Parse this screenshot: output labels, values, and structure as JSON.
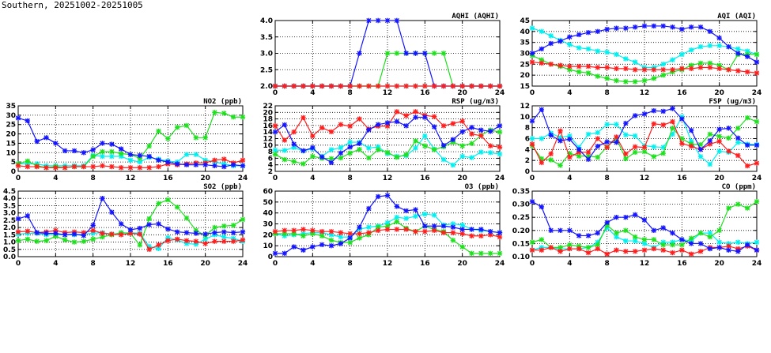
{
  "title": "Southern, 20251002-20251005",
  "series_colors": {
    "blue": "#1414ff",
    "cyan": "#00f0f0",
    "green": "#1ee01e",
    "red": "#ff1e1e"
  },
  "chart_data": [
    {
      "type": "line",
      "title": "AQHI (AQHI)",
      "xticks": [
        "0",
        "4",
        "8",
        "12",
        "16",
        "20",
        "24"
      ],
      "xlim": [
        0,
        24
      ],
      "ylim": [
        2,
        4
      ],
      "yticks": [
        "2.0",
        "2.5",
        "3.0",
        "3.5",
        "4.0"
      ],
      "grid": true,
      "series": [
        {
          "name": "cyan",
          "values": [
            2,
            2,
            2,
            2,
            2,
            2,
            2,
            2,
            2,
            2,
            2,
            2,
            2,
            2,
            2,
            2,
            2,
            2,
            2,
            2,
            2,
            2,
            2,
            2,
            2
          ]
        },
        {
          "name": "green",
          "values": [
            2,
            2,
            2,
            2,
            2,
            2,
            2,
            2,
            2,
            2,
            2,
            2,
            3,
            3,
            3,
            3,
            3,
            3,
            3,
            2,
            2,
            2,
            2,
            2,
            2
          ]
        },
        {
          "name": "blue",
          "values": [
            2,
            2,
            2,
            2,
            2,
            2,
            2,
            2,
            2,
            3,
            4,
            4,
            4,
            4,
            3,
            3,
            3,
            2,
            2,
            2,
            2,
            2,
            2,
            2,
            2
          ]
        },
        {
          "name": "red",
          "values": [
            2,
            2,
            2,
            2,
            2,
            2,
            2,
            2,
            2,
            2,
            2,
            2,
            2,
            2,
            2,
            2,
            2,
            2,
            2,
            2,
            2,
            2,
            2,
            2,
            2
          ]
        }
      ]
    },
    {
      "type": "line",
      "title": "AQI (AQI)",
      "xticks": [
        "0",
        "4",
        "8",
        "12",
        "16",
        "20",
        "24"
      ],
      "xlim": [
        0,
        24
      ],
      "ylim": [
        15,
        45
      ],
      "yticks": [
        "15",
        "20",
        "25",
        "30",
        "35",
        "40",
        "45"
      ],
      "grid": true,
      "series": [
        {
          "name": "cyan",
          "values": [
            41.5,
            40,
            38,
            36,
            34,
            32.5,
            32,
            31,
            30.5,
            29.5,
            27.5,
            26,
            23.5,
            23.5,
            25,
            27,
            29.5,
            31.5,
            33,
            33.5,
            33.5,
            33,
            32,
            31,
            29.5
          ]
        },
        {
          "name": "green",
          "values": [
            29,
            27,
            25,
            24,
            22.5,
            21.5,
            21,
            19.5,
            18.5,
            17.5,
            17,
            17,
            17.5,
            18.5,
            20,
            21.5,
            22.5,
            24.5,
            25.5,
            25.5,
            24.5,
            22.5,
            29.5,
            29.5,
            29.5
          ]
        },
        {
          "name": "red",
          "values": [
            26,
            25.5,
            25,
            24.5,
            24,
            24,
            24,
            23.5,
            23.5,
            23,
            23,
            22.5,
            22.5,
            22.5,
            22.5,
            22.5,
            23,
            23,
            23.5,
            23.5,
            23,
            22.5,
            22,
            21.5,
            21
          ]
        },
        {
          "name": "blue",
          "values": [
            30,
            32,
            34.5,
            35.5,
            37.5,
            38.5,
            39.5,
            40,
            41,
            41.5,
            41.5,
            42,
            42.5,
            42.5,
            42.5,
            42,
            41,
            42,
            42,
            40,
            37,
            33,
            30,
            28.5,
            26
          ]
        }
      ]
    },
    {
      "type": "line",
      "title": "NO2 (ppb)",
      "xticks": [
        "0",
        "4",
        "8",
        "12",
        "16",
        "20",
        "24"
      ],
      "xlim": [
        0,
        24
      ],
      "ylim": [
        0,
        35
      ],
      "yticks": [
        "0",
        "5",
        "10",
        "15",
        "20",
        "25",
        "30",
        "35"
      ],
      "grid": true,
      "series": [
        {
          "name": "cyan",
          "values": [
            4,
            4,
            4,
            3,
            3,
            3,
            3,
            3,
            8.5,
            8,
            8,
            8,
            6,
            5,
            7.5,
            6.5,
            5.5,
            5,
            9,
            9,
            6,
            5,
            4,
            3,
            3
          ]
        },
        {
          "name": "green",
          "values": [
            4,
            5.5,
            3,
            2,
            2.5,
            2,
            2.5,
            2.5,
            8,
            10.5,
            10.5,
            9.5,
            9,
            7,
            13.5,
            21.5,
            17.5,
            23.5,
            24.5,
            18,
            18,
            31.5,
            31,
            29,
            29
          ]
        },
        {
          "name": "red",
          "values": [
            3,
            2.5,
            2.5,
            2,
            2,
            2,
            2.5,
            2.5,
            2.5,
            3,
            2.5,
            2,
            2,
            2,
            2,
            2.5,
            4,
            3.5,
            4,
            4.5,
            4.5,
            6,
            6.5,
            4.5,
            6
          ]
        },
        {
          "name": "blue",
          "values": [
            28.5,
            27,
            16,
            18,
            15,
            11,
            11,
            10,
            11.5,
            15,
            14.5,
            12,
            9,
            8.5,
            8,
            6,
            5,
            4,
            3.5,
            3.5,
            3.5,
            3,
            2.5,
            3.5,
            3
          ]
        }
      ]
    },
    {
      "type": "line",
      "title": "RSP (ug/m3)",
      "xticks": [
        "0",
        "4",
        "8",
        "12",
        "16",
        "20",
        "24"
      ],
      "xlim": [
        0,
        24
      ],
      "ylim": [
        2,
        22
      ],
      "yticks": [
        "2",
        "4",
        "6",
        "8",
        "10",
        "12",
        "14",
        "16",
        "18",
        "20",
        "22"
      ],
      "grid": true,
      "series": [
        {
          "name": "cyan",
          "values": [
            8.5,
            8.4,
            9.3,
            8.2,
            8.9,
            6.6,
            8.6,
            9.2,
            10.9,
            10.9,
            9.1,
            9.5,
            7.4,
            6.6,
            6.8,
            9.1,
            12.8,
            8.8,
            5.6,
            3.9,
            6.6,
            6.2,
            7.9,
            7.7,
            7.3
          ]
        },
        {
          "name": "green",
          "values": [
            7.2,
            5.6,
            5.0,
            4.3,
            6.6,
            6.0,
            5.9,
            6.1,
            7.6,
            8.7,
            6.1,
            8.6,
            7.8,
            6.3,
            7.1,
            11.3,
            9.8,
            8.6,
            9.5,
            10.9,
            9.8,
            10.5,
            13,
            14.6,
            14
          ]
        },
        {
          "name": "red",
          "values": [
            15.9,
            11.5,
            14.0,
            18.4,
            12.8,
            15.3,
            14.1,
            16.3,
            15.8,
            18.0,
            14.9,
            15.8,
            15.8,
            20.2,
            19.0,
            20.2,
            19.1,
            18.7,
            15.9,
            16.6,
            17.3,
            13.4,
            12.9,
            9.8,
            9.4
          ]
        },
        {
          "name": "blue",
          "values": [
            14,
            16.2,
            10.3,
            8.3,
            9.2,
            6.4,
            4.7,
            7.6,
            9.4,
            10.5,
            14.7,
            16.3,
            16.8,
            17.2,
            15.9,
            18.5,
            18.5,
            15.6,
            9.9,
            11.7,
            14.1,
            15.4,
            14.6,
            14.2,
            15.9
          ]
        }
      ]
    },
    {
      "type": "line",
      "title": "FSP (ug/m3)",
      "xticks": [
        "0",
        "4",
        "8",
        "12",
        "16",
        "20",
        "24"
      ],
      "xlim": [
        0,
        24
      ],
      "ylim": [
        0,
        12
      ],
      "yticks": [
        "0",
        "2",
        "4",
        "6",
        "8",
        "10",
        "12"
      ],
      "grid": true,
      "series": [
        {
          "name": "cyan",
          "values": [
            6,
            6,
            7,
            6.2,
            6.5,
            4.4,
            6.8,
            7.1,
            8.6,
            8.6,
            6.7,
            6.5,
            4.7,
            4.5,
            4.4,
            6.8,
            10,
            5.5,
            2.7,
            1.3,
            3.7,
            3.5,
            5.3,
            5,
            4.9
          ]
        },
        {
          "name": "green",
          "values": [
            4.7,
            2.3,
            2.1,
            1.1,
            3.3,
            2.8,
            2.8,
            2.6,
            4.5,
            6,
            2.3,
            3.5,
            3.6,
            2.7,
            3.3,
            7.9,
            6,
            5,
            4.9,
            6.8,
            6.4,
            6.1,
            7.9,
            9.8,
            9.1
          ]
        },
        {
          "name": "red",
          "values": [
            5,
            1.6,
            3.2,
            7.4,
            2.6,
            3.5,
            3.5,
            6,
            4.4,
            6.3,
            3.2,
            4.5,
            4.4,
            8.7,
            8.5,
            9.1,
            5.1,
            4.6,
            4,
            5,
            5.5,
            3.7,
            2.9,
            1,
            1.5
          ]
        },
        {
          "name": "blue",
          "values": [
            9.2,
            11.3,
            6.6,
            5.6,
            5.9,
            4,
            2.2,
            4.6,
            5.4,
            5.3,
            8.8,
            10.2,
            10.5,
            11.1,
            11,
            11.5,
            9.6,
            7.5,
            4,
            5.6,
            7.7,
            7.9,
            6.1,
            4.8,
            4.8
          ]
        }
      ]
    },
    {
      "type": "line",
      "title": "SO2 (ppb)",
      "xticks": [
        "0",
        "4",
        "8",
        "12",
        "16",
        "20",
        "24"
      ],
      "xlim": [
        0,
        24
      ],
      "ylim": [
        0,
        4.5
      ],
      "yticks": [
        "0.0",
        "0.5",
        "1.0",
        "1.5",
        "2.0",
        "2.5",
        "3.0",
        "3.5",
        "4.0",
        "4.5"
      ],
      "grid": true,
      "series": [
        {
          "name": "cyan",
          "values": [
            1.55,
            1.6,
            1.6,
            1.5,
            1.5,
            1.5,
            1.5,
            1.55,
            1.6,
            1.65,
            1.55,
            1.6,
            1.65,
            1.6,
            0.7,
            0.55,
            1.3,
            1.15,
            0.9,
            0.85,
            1.2,
            1.5,
            1.35,
            1.25,
            1.05
          ]
        },
        {
          "name": "green",
          "values": [
            1.1,
            1.2,
            1.05,
            1.1,
            1.4,
            1.15,
            1.0,
            1.05,
            1.2,
            1.35,
            1.5,
            1.65,
            1.6,
            0.8,
            2.6,
            3.65,
            3.9,
            3.4,
            2.65,
            1.8,
            1.45,
            2.0,
            2.1,
            2.15,
            2.55
          ]
        },
        {
          "name": "red",
          "values": [
            1.7,
            1.75,
            1.65,
            1.7,
            1.8,
            1.65,
            1.7,
            1.65,
            1.8,
            1.6,
            1.55,
            1.5,
            1.6,
            1.55,
            0.5,
            0.8,
            1.1,
            1.2,
            1.1,
            1.05,
            0.9,
            1.05,
            1.05,
            1.05,
            1.15
          ]
        },
        {
          "name": "blue",
          "values": [
            2.6,
            2.8,
            1.65,
            1.6,
            1.6,
            1.5,
            1.55,
            1.45,
            2.15,
            4.0,
            3.05,
            2.25,
            1.85,
            1.95,
            2.2,
            2.25,
            1.9,
            1.7,
            1.65,
            1.6,
            1.55,
            1.65,
            1.7,
            1.65,
            1.7
          ]
        }
      ]
    },
    {
      "type": "line",
      "title": "O3 (ppb)",
      "xticks": [
        "0",
        "4",
        "8",
        "12",
        "16",
        "20",
        "24"
      ],
      "xlim": [
        0,
        24
      ],
      "ylim": [
        0,
        60
      ],
      "yticks": [
        "0",
        "10",
        "20",
        "30",
        "40",
        "50",
        "60"
      ],
      "grid": true,
      "series": [
        {
          "name": "cyan",
          "values": [
            21,
            19,
            20,
            21,
            22,
            22,
            20,
            18,
            18,
            25,
            27,
            28,
            31,
            36,
            35,
            37,
            39,
            38,
            29,
            30,
            29,
            25,
            24,
            23,
            22
          ]
        },
        {
          "name": "green",
          "values": [
            21,
            21,
            21,
            19,
            21,
            19,
            15,
            13,
            13,
            17,
            20,
            27,
            28,
            32,
            26,
            23,
            28,
            25,
            23,
            15,
            9,
            3,
            3,
            3,
            3
          ]
        },
        {
          "name": "red",
          "values": [
            23,
            24,
            24,
            25,
            24,
            23,
            23,
            22,
            21,
            21,
            22,
            24,
            25,
            25,
            25,
            23,
            23,
            24,
            22,
            22,
            21,
            19,
            19,
            20,
            18
          ]
        },
        {
          "name": "blue",
          "values": [
            3,
            3,
            9,
            6,
            9,
            11,
            10,
            12,
            17,
            27,
            44,
            55,
            56,
            46,
            42,
            43,
            28,
            28,
            28,
            27,
            25,
            25,
            25,
            23,
            22
          ]
        }
      ]
    },
    {
      "type": "line",
      "title": "CO (ppm)",
      "xticks": [
        "0",
        "4",
        "8",
        "12",
        "16",
        "20",
        "24"
      ],
      "xlim": [
        0,
        24
      ],
      "ylim": [
        0.1,
        0.35
      ],
      "yticks": [
        "0.10",
        "0.15",
        "0.20",
        "0.25",
        "0.30",
        "0.35"
      ],
      "grid": true,
      "series": [
        {
          "name": "cyan",
          "values": [
            0.125,
            0.135,
            0.135,
            0.13,
            0.13,
            0.13,
            0.135,
            0.155,
            0.21,
            0.175,
            0.16,
            0.16,
            0.15,
            0.135,
            0.155,
            0.155,
            0.165,
            0.16,
            0.19,
            0.19,
            0.155,
            0.15,
            0.155,
            0.15,
            0.155
          ]
        },
        {
          "name": "green",
          "values": [
            0.155,
            0.165,
            0.135,
            0.135,
            0.145,
            0.14,
            0.135,
            0.145,
            0.22,
            0.19,
            0.2,
            0.175,
            0.165,
            0.165,
            0.145,
            0.145,
            0.145,
            0.17,
            0.19,
            0.175,
            0.2,
            0.285,
            0.3,
            0.285,
            0.31
          ]
        },
        {
          "name": "red",
          "values": [
            0.125,
            0.125,
            0.135,
            0.12,
            0.13,
            0.13,
            0.115,
            0.13,
            0.11,
            0.125,
            0.12,
            0.12,
            0.125,
            0.13,
            0.125,
            0.115,
            0.125,
            0.11,
            0.12,
            0.135,
            0.135,
            0.14,
            0.13,
            0.14,
            0.125
          ]
        },
        {
          "name": "blue",
          "values": [
            0.31,
            0.29,
            0.2,
            0.2,
            0.2,
            0.18,
            0.18,
            0.19,
            0.23,
            0.25,
            0.25,
            0.26,
            0.24,
            0.2,
            0.21,
            0.19,
            0.165,
            0.15,
            0.15,
            0.13,
            0.135,
            0.125,
            0.12,
            0.145,
            0.125
          ]
        }
      ]
    }
  ]
}
